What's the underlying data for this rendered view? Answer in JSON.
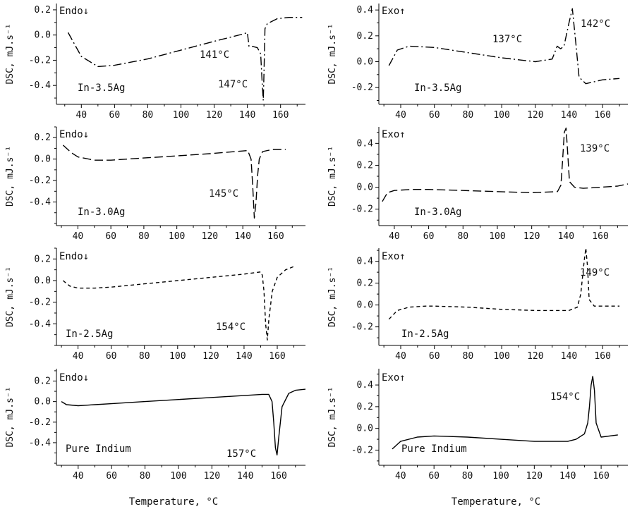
{
  "figure": {
    "xlabel_left": "Temperature, °C",
    "xlabel_right": "Temperature, °C"
  },
  "chart_data": [
    {
      "type": "line",
      "ylabel": "DSC, mJ.s⁻¹",
      "heat_label": "Endo↓",
      "sample_label": "In-3.5Ag",
      "line_style": "dash-dot",
      "xlim": [
        25,
        175
      ],
      "ylim": [
        -0.55,
        0.25
      ],
      "xticks": [
        40,
        60,
        80,
        100,
        120,
        140,
        160
      ],
      "yticks": [
        0.2,
        0.0,
        -0.2,
        -0.4
      ],
      "x": [
        32,
        40,
        50,
        60,
        80,
        100,
        120,
        138,
        140,
        141,
        143,
        146,
        148,
        149,
        149.6,
        150,
        150.6,
        152,
        158,
        165,
        173
      ],
      "y": [
        0.02,
        -0.17,
        -0.25,
        -0.24,
        -0.19,
        -0.12,
        -0.05,
        0.01,
        0.02,
        -0.09,
        -0.09,
        -0.1,
        -0.15,
        -0.4,
        -0.52,
        -0.3,
        0.05,
        0.09,
        0.13,
        0.14,
        0.14
      ],
      "annotations": [
        "141°C",
        "147°C"
      ]
    },
    {
      "type": "line",
      "ylabel": "DSC, mJ.s⁻¹",
      "heat_label": "Exo↑",
      "sample_label": "In-3.5Ag",
      "line_style": "dash-dot",
      "xlim": [
        27,
        175
      ],
      "ylim": [
        -0.33,
        0.45
      ],
      "xticks": [
        40,
        60,
        80,
        100,
        120,
        140,
        160
      ],
      "yticks": [
        0.4,
        0.2,
        0.0,
        -0.2
      ],
      "x": [
        33,
        38,
        45,
        60,
        80,
        100,
        120,
        130,
        133,
        135,
        137,
        140,
        142,
        144,
        146,
        150,
        160,
        170
      ],
      "y": [
        -0.03,
        0.09,
        0.12,
        0.11,
        0.07,
        0.03,
        0.0,
        0.02,
        0.12,
        0.1,
        0.12,
        0.3,
        0.41,
        0.15,
        -0.12,
        -0.17,
        -0.14,
        -0.13
      ],
      "annotations": [
        "137°C",
        "142°C"
      ]
    },
    {
      "type": "line",
      "ylabel": "DSC, mJ.s⁻¹",
      "heat_label": "Endo↓",
      "sample_label": "In-3.0Ag",
      "line_style": "long-dash",
      "xlim": [
        27,
        178
      ],
      "ylim": [
        -0.62,
        0.3
      ],
      "xticks": [
        40,
        60,
        80,
        100,
        120,
        140,
        160
      ],
      "yticks": [
        0.2,
        0.0,
        -0.2,
        -0.4
      ],
      "x": [
        31,
        36,
        40,
        50,
        60,
        80,
        100,
        120,
        143,
        145,
        146,
        147,
        148,
        149,
        150,
        152,
        158,
        166
      ],
      "y": [
        0.13,
        0.06,
        0.02,
        -0.01,
        -0.01,
        0.01,
        0.03,
        0.05,
        0.08,
        0.0,
        -0.25,
        -0.55,
        -0.4,
        -0.15,
        0.0,
        0.07,
        0.09,
        0.09
      ],
      "annotations": [
        "145°C"
      ]
    },
    {
      "type": "line",
      "ylabel": "DSC, mJ.s⁻¹",
      "heat_label": "Exo↑",
      "sample_label": "In-3.0Ag",
      "line_style": "long-dash",
      "xlim": [
        31,
        176
      ],
      "ylim": [
        -0.35,
        0.55
      ],
      "xticks": [
        40,
        60,
        80,
        100,
        120,
        140,
        160
      ],
      "yticks": [
        0.4,
        0.2,
        0.0,
        -0.2
      ],
      "x": [
        33,
        36,
        40,
        50,
        60,
        80,
        100,
        120,
        135,
        137,
        138,
        139,
        140,
        141,
        142,
        145,
        150,
        160,
        170,
        176
      ],
      "y": [
        -0.13,
        -0.05,
        -0.03,
        -0.02,
        -0.02,
        -0.03,
        -0.04,
        -0.05,
        -0.04,
        0.02,
        0.25,
        0.5,
        0.54,
        0.3,
        0.05,
        0.0,
        -0.01,
        0.0,
        0.01,
        0.03
      ],
      "annotations": [
        "139°C"
      ]
    },
    {
      "type": "line",
      "ylabel": "DSC, mJ.s⁻¹",
      "heat_label": "Endo↓",
      "sample_label": "In-2.5Ag",
      "line_style": "short-dash",
      "xlim": [
        27,
        177
      ],
      "ylim": [
        -0.6,
        0.3
      ],
      "xticks": [
        40,
        60,
        80,
        100,
        120,
        140,
        160
      ],
      "yticks": [
        0.2,
        0.0,
        -0.2,
        -0.4
      ],
      "x": [
        31,
        35,
        40,
        50,
        60,
        80,
        100,
        120,
        140,
        150,
        151,
        152,
        153,
        154,
        155,
        157,
        160,
        165,
        170
      ],
      "y": [
        0.0,
        -0.05,
        -0.07,
        -0.07,
        -0.06,
        -0.03,
        0.0,
        0.03,
        0.06,
        0.08,
        0.05,
        -0.1,
        -0.4,
        -0.55,
        -0.35,
        -0.1,
        0.03,
        0.1,
        0.13
      ],
      "annotations": [
        "154°C"
      ]
    },
    {
      "type": "line",
      "ylabel": "DSC, mJ.s⁻¹",
      "heat_label": "Exo↑",
      "sample_label": "In-2.5Ag",
      "line_style": "short-dash",
      "xlim": [
        27,
        175
      ],
      "ylim": [
        -0.37,
        0.52
      ],
      "xticks": [
        40,
        60,
        80,
        100,
        120,
        140,
        160
      ],
      "yticks": [
        0.4,
        0.2,
        0.0,
        -0.2
      ],
      "x": [
        33,
        38,
        45,
        55,
        60,
        80,
        100,
        120,
        140,
        145,
        147,
        149,
        150,
        151,
        152,
        155,
        160,
        170
      ],
      "y": [
        -0.13,
        -0.05,
        -0.02,
        -0.01,
        -0.01,
        -0.02,
        -0.04,
        -0.05,
        -0.05,
        -0.02,
        0.1,
        0.4,
        0.52,
        0.35,
        0.05,
        -0.01,
        -0.01,
        -0.01
      ],
      "annotations": [
        "149°C"
      ]
    },
    {
      "type": "line",
      "ylabel": "DSC, mJ.s⁻¹",
      "heat_label": "Endo↓",
      "sample_label": "Pure Indium",
      "line_style": "solid",
      "xlim": [
        27,
        176
      ],
      "ylim": [
        -0.62,
        0.32
      ],
      "xticks": [
        40,
        60,
        80,
        100,
        120,
        140,
        160
      ],
      "yticks": [
        0.2,
        0.0,
        -0.2,
        -0.4
      ],
      "x": [
        30,
        33,
        40,
        50,
        60,
        80,
        100,
        120,
        140,
        150,
        154,
        156,
        157,
        158,
        159,
        160,
        162,
        166,
        170,
        176
      ],
      "y": [
        0.0,
        -0.03,
        -0.04,
        -0.03,
        -0.02,
        0.0,
        0.02,
        0.04,
        0.06,
        0.07,
        0.07,
        0.0,
        -0.2,
        -0.45,
        -0.52,
        -0.35,
        -0.05,
        0.08,
        0.11,
        0.12
      ],
      "annotations": [
        "157°C"
      ]
    },
    {
      "type": "line",
      "ylabel": "DSC, mJ.s⁻¹",
      "heat_label": "Exo↑",
      "sample_label": "Pure Indium",
      "line_style": "solid",
      "xlim": [
        27,
        176
      ],
      "ylim": [
        -0.34,
        0.55
      ],
      "xticks": [
        40,
        60,
        80,
        100,
        120,
        140,
        160
      ],
      "yticks": [
        0.4,
        0.2,
        0.0,
        -0.2
      ],
      "x": [
        35,
        40,
        50,
        60,
        80,
        100,
        120,
        140,
        145,
        150,
        152,
        153,
        154,
        155,
        156,
        157,
        160,
        170
      ],
      "y": [
        -0.19,
        -0.12,
        -0.08,
        -0.07,
        -0.08,
        -0.1,
        -0.12,
        -0.12,
        -0.1,
        -0.05,
        0.05,
        0.2,
        0.4,
        0.48,
        0.35,
        0.05,
        -0.08,
        -0.06
      ],
      "annotations": [
        "154°C"
      ]
    }
  ]
}
